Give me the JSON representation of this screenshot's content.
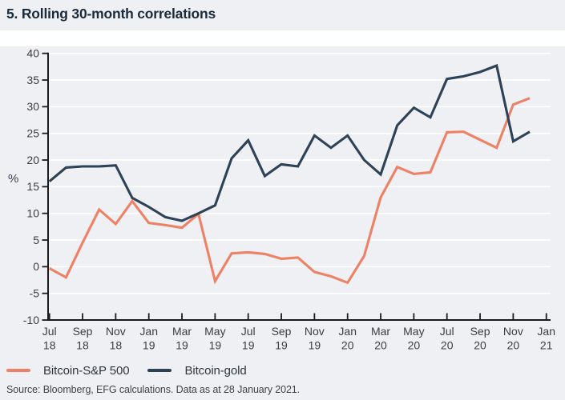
{
  "title": "5. Rolling 30-month correlations",
  "source": "Source: Bloomberg, EFG calculations. Data as at 28 January 2021.",
  "colors": {
    "background": "#eef0f3",
    "band": "#ffffff",
    "gridline": "#ffffff",
    "axis": "#1b1b1b",
    "tick_label": "#3d3d3d",
    "ylabel": "#3a4150",
    "title": "#1c2b3c",
    "legend_text": "#2e3540",
    "source_text": "#3f4346",
    "bitcoin_sp500": "#ee8165",
    "bitcoin_gold": "#2d4256"
  },
  "chart_data": {
    "type": "line",
    "title": "5. Rolling 30-month correlations",
    "xlabel": "",
    "ylabel": "%",
    "ylim": [
      -10,
      40
    ],
    "grid": true,
    "legend_position": "bottom-left",
    "y_ticks": [
      40,
      35,
      30,
      25,
      20,
      15,
      10,
      5,
      0,
      -5,
      -10
    ],
    "x": [
      "Jul 18",
      "Aug 18",
      "Sep 18",
      "Oct 18",
      "Nov 18",
      "Dec 18",
      "Jan 19",
      "Feb 19",
      "Mar 19",
      "Apr 19",
      "May 19",
      "Jun 19",
      "Jul 19",
      "Aug 19",
      "Sep 19",
      "Oct 19",
      "Nov 19",
      "Dec 19",
      "Jan 20",
      "Feb 20",
      "Mar 20",
      "Apr 20",
      "May 20",
      "Jun 20",
      "Jul 20",
      "Aug 20",
      "Sep 20",
      "Oct 20",
      "Nov 20",
      "Dec 20"
    ],
    "x_tick_labels": [
      {
        "month": "Jul",
        "year": "18",
        "index": 0
      },
      {
        "month": "Sep",
        "year": "18",
        "index": 2
      },
      {
        "month": "Nov",
        "year": "18",
        "index": 4
      },
      {
        "month": "Jan",
        "year": "19",
        "index": 6
      },
      {
        "month": "Mar",
        "year": "19",
        "index": 8
      },
      {
        "month": "May",
        "year": "19",
        "index": 10
      },
      {
        "month": "Jul",
        "year": "19",
        "index": 12
      },
      {
        "month": "Sep",
        "year": "19",
        "index": 14
      },
      {
        "month": "Nov",
        "year": "19",
        "index": 16
      },
      {
        "month": "Jan",
        "year": "20",
        "index": 18
      },
      {
        "month": "Mar",
        "year": "20",
        "index": 20
      },
      {
        "month": "May",
        "year": "20",
        "index": 22
      },
      {
        "month": "Jul",
        "year": "20",
        "index": 24
      },
      {
        "month": "Sep",
        "year": "20",
        "index": 26
      },
      {
        "month": "Nov",
        "year": "20",
        "index": 28
      },
      {
        "month": "Jan",
        "year": "21",
        "index": 30
      }
    ],
    "series": [
      {
        "name": "Bitcoin-S&P 500",
        "color": "#ee8165",
        "values": [
          -0.3,
          -2,
          4.5,
          10.7,
          8,
          12.3,
          8.2,
          7.8,
          7.3,
          9.9,
          -2.7,
          2.5,
          2.7,
          2.4,
          1.5,
          1.7,
          -1,
          -1.8,
          -3,
          2,
          13,
          18.7,
          17.4,
          17.7,
          25.2,
          25.3,
          23.8,
          22.3,
          30.4,
          31.6
        ]
      },
      {
        "name": "Bitcoin-gold",
        "color": "#2d4256",
        "values": [
          16,
          18.6,
          18.8,
          18.8,
          19,
          12.9,
          11.2,
          9.3,
          8.6,
          10,
          11.5,
          20.3,
          23.7,
          17,
          19.2,
          18.8,
          24.6,
          22.3,
          24.6,
          20,
          17.3,
          26.5,
          29.8,
          28,
          35.2,
          35.7,
          36.5,
          37.7,
          23.5,
          25.3
        ]
      }
    ]
  }
}
